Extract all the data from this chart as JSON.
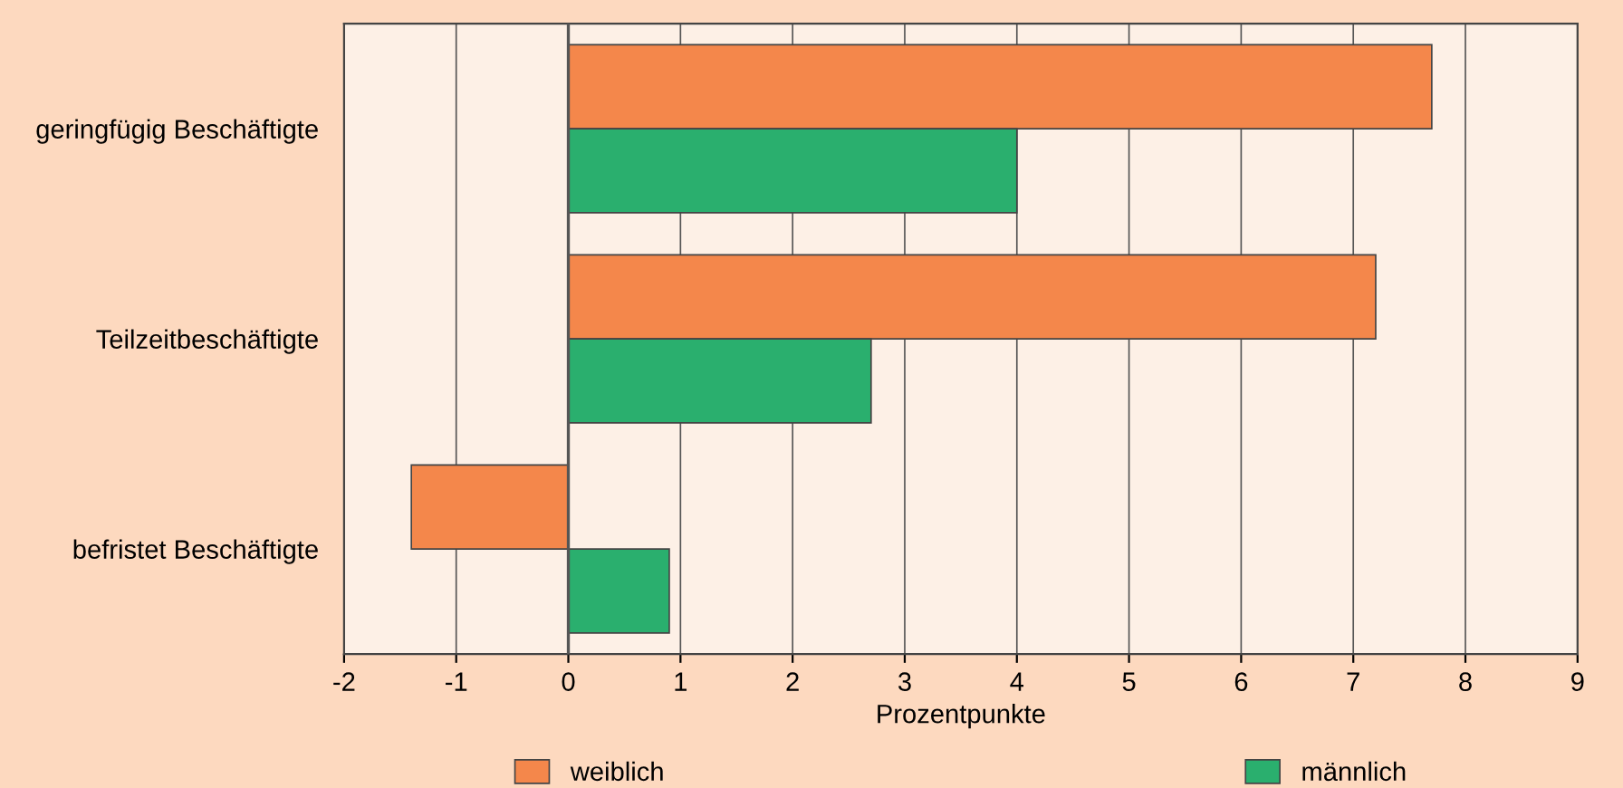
{
  "chart_data": {
    "type": "bar",
    "orientation": "horizontal",
    "xlabel": "Prozentpunkte",
    "categories": [
      "geringfügig Beschäftigte",
      "Teilzeitbeschäftigte",
      "befristet Beschäftigte"
    ],
    "series": [
      {
        "name": "weiblich",
        "color": "#f4874b",
        "values": [
          7.7,
          7.2,
          -1.4
        ]
      },
      {
        "name": "männlich",
        "color": "#2aaf6e",
        "values": [
          4.0,
          2.7,
          0.9
        ]
      }
    ],
    "xlim": [
      -2,
      9
    ],
    "xticks": [
      -2,
      -1,
      0,
      1,
      2,
      3,
      4,
      5,
      6,
      7,
      8,
      9
    ],
    "ref_lines": [
      {
        "axis": "x",
        "value": 0,
        "color": "#555555"
      }
    ],
    "grid": "x",
    "legend": "bottom"
  }
}
